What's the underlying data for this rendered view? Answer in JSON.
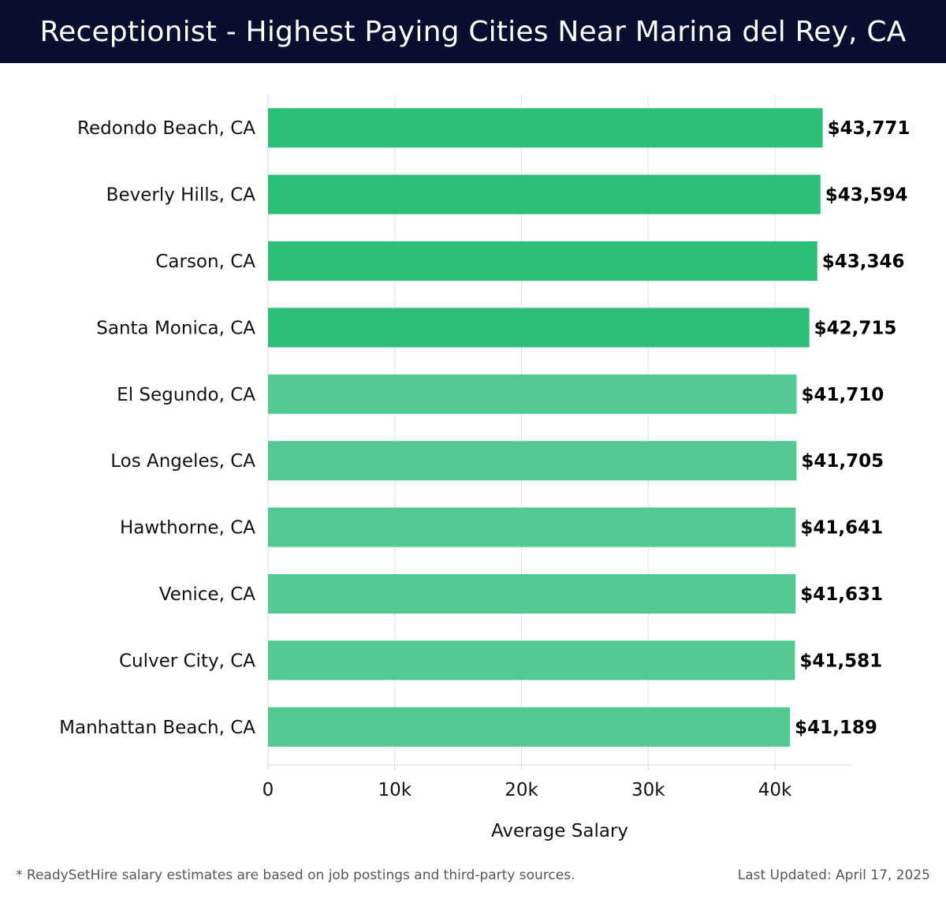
{
  "header": {
    "title": "Receptionist - Highest Paying Cities Near Marina del Rey, CA"
  },
  "footer": {
    "note": "* ReadySetHire salary estimates are based on job postings and third-party sources.",
    "updated": "Last Updated: April 17, 2025"
  },
  "colors": {
    "header_bg": "#0c0e30",
    "bar_top": "#2dbe78",
    "bar_rest": "#52c990",
    "grid": "#e3e3e3"
  },
  "chart_data": {
    "type": "bar",
    "orientation": "horizontal",
    "title": "Receptionist - Highest Paying Cities Near Marina del Rey, CA",
    "xlabel": "Average Salary",
    "ylabel": "",
    "xlim": [
      0,
      46000
    ],
    "grid": true,
    "ticks": [
      0,
      10000,
      20000,
      30000,
      40000
    ],
    "tick_labels": [
      "0",
      "10k",
      "20k",
      "30k",
      "40k"
    ],
    "categories": [
      "Redondo Beach, CA",
      "Beverly Hills, CA",
      "Carson, CA",
      "Santa Monica, CA",
      "El Segundo, CA",
      "Los Angeles, CA",
      "Hawthorne, CA",
      "Venice, CA",
      "Culver City, CA",
      "Manhattan Beach, CA"
    ],
    "values": [
      43771,
      43594,
      43346,
      42715,
      41710,
      41705,
      41641,
      41631,
      41581,
      41189
    ],
    "value_labels": [
      "$43,771",
      "$43,594",
      "$43,346",
      "$42,715",
      "$41,710",
      "$41,705",
      "$41,641",
      "$41,631",
      "$41,581",
      "$41,189"
    ]
  }
}
